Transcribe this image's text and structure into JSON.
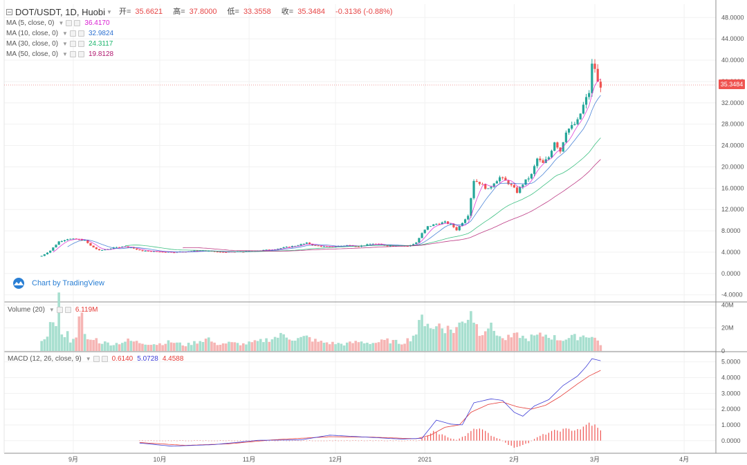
{
  "header": {
    "symbol": "DOT/USDT, 1D, Huobi",
    "open_label": "开=",
    "open": "35.6621",
    "high_label": "高=",
    "high": "37.8000",
    "low_label": "低=",
    "low": "33.3558",
    "close_label": "收=",
    "close": "35.3484",
    "change": "-0.3136 (-0.88%)"
  },
  "indicators": [
    {
      "name": "MA (5, close, 0)",
      "value": "36.4170",
      "color": "#d91cd1"
    },
    {
      "name": "MA (10, close, 0)",
      "value": "32.9824",
      "color": "#2b6fd0"
    },
    {
      "name": "MA (30, close, 0)",
      "value": "24.3117",
      "color": "#19b46b"
    },
    {
      "name": "MA (50, close, 0)",
      "value": "19.8128",
      "color": "#b0186f"
    }
  ],
  "volume_legend": {
    "name": "Volume (20)",
    "value": "6.119M"
  },
  "macd_legend": {
    "name": "MACD (12, 26, close, 9)",
    "hist": "0.6140",
    "macd": "5.0728",
    "signal": "4.4588"
  },
  "price_tag": "35.3484",
  "watermark": "Chart by TradingView",
  "colors": {
    "up": "#26a69a",
    "down": "#ef5350",
    "up_vol": "#a7dfcf",
    "down_vol": "#f6b5b4",
    "macd": "#3b3bd6",
    "signal": "#e53935",
    "hist": "#ef5350",
    "grid": "#f1f1f1",
    "axis_text": "#555555"
  },
  "chart_data": {
    "type": "candlestick",
    "title": "DOT/USDT, 1D, Huobi",
    "price_axis_ticks": [
      "48.0000",
      "44.0000",
      "40.0000",
      "36.0000",
      "32.0000",
      "28.0000",
      "24.0000",
      "20.0000",
      "16.0000",
      "12.0000",
      "8.0000",
      "4.0000",
      "0.0000",
      "-4.0000"
    ],
    "price_range": [
      -5.2,
      50.5
    ],
    "volume_axis_ticks": [
      "40M",
      "20M",
      "0"
    ],
    "volume_range": [
      0,
      42
    ],
    "macd_axis_ticks": [
      "5.0000",
      "4.0000",
      "3.0000",
      "2.0000",
      "1.0000",
      "0.0000"
    ],
    "macd_range": [
      -0.8,
      5.6
    ],
    "x_ticks": [
      "9月",
      "10月",
      "11月",
      "12月",
      "2021",
      "2月",
      "3月",
      "4月"
    ],
    "x_tick_days": [
      11,
      41,
      72,
      102,
      133,
      164,
      192,
      223
    ],
    "day_range": [
      -13,
      234
    ],
    "candles_ohlc_note": "open,high,low,close per day index 0 = 2020-08-21",
    "close_path": [
      [
        0,
        3.3
      ],
      [
        3,
        4.3
      ],
      [
        6,
        6.0
      ],
      [
        9,
        6.5
      ],
      [
        12,
        6.4
      ],
      [
        15,
        6.2
      ],
      [
        17,
        5.2
      ],
      [
        20,
        4.3
      ],
      [
        24,
        4.7
      ],
      [
        28,
        5.1
      ],
      [
        31,
        4.9
      ],
      [
        34,
        4.3
      ],
      [
        40,
        4.1
      ],
      [
        46,
        4.0
      ],
      [
        52,
        4.2
      ],
      [
        56,
        4.3
      ],
      [
        62,
        4.0
      ],
      [
        70,
        4.1
      ],
      [
        80,
        4.5
      ],
      [
        88,
        5.2
      ],
      [
        92,
        5.7
      ],
      [
        95,
        5.2
      ],
      [
        100,
        5.0
      ],
      [
        106,
        5.3
      ],
      [
        110,
        5.1
      ],
      [
        115,
        5.6
      ],
      [
        120,
        5.2
      ],
      [
        124,
        5.3
      ],
      [
        127,
        5.1
      ],
      [
        130,
        5.8
      ],
      [
        132,
        7.5
      ],
      [
        134,
        8.8
      ],
      [
        137,
        9.3
      ],
      [
        140,
        9.6
      ],
      [
        142,
        9.2
      ],
      [
        144,
        8.2
      ],
      [
        146,
        9.6
      ],
      [
        148,
        11.0
      ],
      [
        150,
        17.5
      ],
      [
        152,
        17.0
      ],
      [
        155,
        15.7
      ],
      [
        157,
        17.1
      ],
      [
        159,
        18.0
      ],
      [
        162,
        17.0
      ],
      [
        165,
        15.3
      ],
      [
        167,
        16.8
      ],
      [
        170,
        18.5
      ],
      [
        172,
        21.5
      ],
      [
        174,
        20.6
      ],
      [
        176,
        21.8
      ],
      [
        178,
        24.8
      ],
      [
        180,
        23.0
      ],
      [
        182,
        26.8
      ],
      [
        184,
        27.5
      ],
      [
        186,
        28.5
      ],
      [
        188,
        31.5
      ],
      [
        190,
        34.0
      ],
      [
        191,
        39.0
      ],
      [
        192,
        38.5
      ],
      [
        193,
        35.7
      ],
      [
        194,
        35.35
      ]
    ],
    "ma_last_values": {
      "MA5": 36.417,
      "MA10": 32.9824,
      "MA30": 24.3117,
      "MA50": 19.8128
    },
    "volume_profile_M": [
      [
        0,
        7
      ],
      [
        2,
        16
      ],
      [
        3,
        22
      ],
      [
        4,
        28
      ],
      [
        5,
        20
      ],
      [
        6,
        42
      ],
      [
        7,
        18
      ],
      [
        8,
        14
      ],
      [
        9,
        15
      ],
      [
        10,
        9
      ],
      [
        11,
        13
      ],
      [
        12,
        10
      ],
      [
        13,
        26
      ],
      [
        14,
        29
      ],
      [
        15,
        15
      ],
      [
        16,
        10
      ],
      [
        17,
        9
      ],
      [
        18,
        12
      ],
      [
        19,
        10
      ],
      [
        20,
        8
      ],
      [
        25,
        6
      ],
      [
        30,
        9
      ],
      [
        35,
        7
      ],
      [
        40,
        6
      ],
      [
        45,
        8
      ],
      [
        50,
        5
      ],
      [
        55,
        9
      ],
      [
        58,
        11
      ],
      [
        60,
        6
      ],
      [
        65,
        7
      ],
      [
        70,
        6
      ],
      [
        75,
        8
      ],
      [
        80,
        11
      ],
      [
        84,
        14
      ],
      [
        88,
        10
      ],
      [
        92,
        12
      ],
      [
        96,
        8
      ],
      [
        100,
        7
      ],
      [
        105,
        6
      ],
      [
        110,
        8
      ],
      [
        115,
        7
      ],
      [
        120,
        9
      ],
      [
        125,
        7
      ],
      [
        128,
        11
      ],
      [
        130,
        16
      ],
      [
        132,
        28
      ],
      [
        134,
        26
      ],
      [
        136,
        18
      ],
      [
        138,
        24
      ],
      [
        140,
        20
      ],
      [
        143,
        18
      ],
      [
        146,
        25
      ],
      [
        148,
        31
      ],
      [
        149,
        37
      ],
      [
        150,
        28
      ],
      [
        152,
        16
      ],
      [
        155,
        22
      ],
      [
        158,
        16
      ],
      [
        160,
        10
      ],
      [
        163,
        12
      ],
      [
        166,
        14
      ],
      [
        168,
        10
      ],
      [
        170,
        12
      ],
      [
        175,
        14
      ],
      [
        180,
        10
      ],
      [
        185,
        12
      ],
      [
        190,
        14
      ],
      [
        193,
        9
      ],
      [
        194,
        6
      ]
    ],
    "macd_line": [
      [
        34,
        -0.15
      ],
      [
        45,
        -0.35
      ],
      [
        60,
        -0.25
      ],
      [
        75,
        0.02
      ],
      [
        90,
        0.05
      ],
      [
        100,
        0.35
      ],
      [
        110,
        0.25
      ],
      [
        125,
        0.1
      ],
      [
        132,
        0.15
      ],
      [
        137,
        1.3
      ],
      [
        142,
        1.05
      ],
      [
        146,
        1.0
      ],
      [
        150,
        2.4
      ],
      [
        156,
        2.65
      ],
      [
        160,
        2.55
      ],
      [
        164,
        1.8
      ],
      [
        167,
        1.55
      ],
      [
        171,
        2.2
      ],
      [
        176,
        2.6
      ],
      [
        181,
        3.5
      ],
      [
        186,
        4.1
      ],
      [
        189,
        4.7
      ],
      [
        191,
        5.2
      ],
      [
        194,
        5.07
      ]
    ],
    "signal_line": [
      [
        34,
        -0.12
      ],
      [
        50,
        -0.3
      ],
      [
        65,
        -0.2
      ],
      [
        80,
        0.05
      ],
      [
        100,
        0.25
      ],
      [
        115,
        0.22
      ],
      [
        130,
        0.12
      ],
      [
        135,
        0.35
      ],
      [
        140,
        0.85
      ],
      [
        145,
        1.0
      ],
      [
        149,
        1.8
      ],
      [
        155,
        2.3
      ],
      [
        160,
        2.45
      ],
      [
        165,
        2.15
      ],
      [
        170,
        2.0
      ],
      [
        175,
        2.25
      ],
      [
        180,
        2.8
      ],
      [
        186,
        3.6
      ],
      [
        190,
        4.1
      ],
      [
        194,
        4.46
      ]
    ],
    "macd_hist": [
      [
        132,
        0.15
      ],
      [
        134,
        0.3
      ],
      [
        136,
        0.55
      ],
      [
        138,
        0.45
      ],
      [
        140,
        0.3
      ],
      [
        142,
        0.15
      ],
      [
        144,
        0.05
      ],
      [
        147,
        0.3
      ],
      [
        149,
        0.7
      ],
      [
        151,
        0.85
      ],
      [
        153,
        0.65
      ],
      [
        155,
        0.45
      ],
      [
        157,
        0.25
      ],
      [
        159,
        0.1
      ],
      [
        161,
        -0.15
      ],
      [
        163,
        -0.35
      ],
      [
        165,
        -0.45
      ],
      [
        167,
        -0.3
      ],
      [
        169,
        -0.15
      ],
      [
        171,
        0.1
      ],
      [
        173,
        0.3
      ],
      [
        176,
        0.5
      ],
      [
        179,
        0.65
      ],
      [
        182,
        0.7
      ],
      [
        185,
        0.7
      ],
      [
        188,
        0.8
      ],
      [
        190,
        1.1
      ],
      [
        192,
        0.95
      ],
      [
        194,
        0.61
      ]
    ]
  }
}
